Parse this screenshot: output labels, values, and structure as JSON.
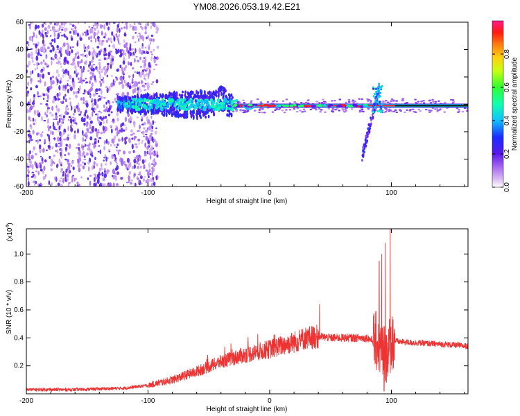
{
  "title": "YM08.2026.053.19.42.E21",
  "chart_data": [
    {
      "type": "heatmap",
      "panel": "spectrogram",
      "xlabel": "Height of straight line (km)",
      "ylabel": "Frequency (Hz)",
      "xlim": [
        -200,
        163
      ],
      "ylim": [
        -60,
        60
      ],
      "xticks": [
        "-200",
        "-100",
        "0",
        "100"
      ],
      "xtick_values": [
        -200,
        -100,
        0,
        100
      ],
      "yticks": [
        "-60",
        "-40",
        "-20",
        "0",
        "20",
        "40",
        "60"
      ],
      "ytick_values": [
        -60,
        -40,
        -20,
        0,
        20,
        40,
        60
      ],
      "noise_region_x": [
        -200,
        -95
      ],
      "features": [
        {
          "name": "broadband scatter",
          "x": [
            -125,
            -30
          ],
          "freq_half_width": 8,
          "amplitude": 0.25
        },
        {
          "name": "steady carrier",
          "x": [
            -30,
            163
          ],
          "freq_center": -1,
          "amplitude": 0.95
        },
        {
          "name": "transient burst",
          "x": [
            75,
            92
          ],
          "freq_range": [
            -38,
            15
          ],
          "amplitude": 0.3
        }
      ],
      "colorbar": {
        "label": "Normalized spectral amplitude",
        "range": [
          0,
          1
        ],
        "ticks": [
          "0.0",
          "0.2",
          "0.4",
          "0.6",
          "0.8"
        ],
        "tick_values": [
          0,
          0.2,
          0.4,
          0.6,
          0.8
        ]
      }
    },
    {
      "type": "line",
      "panel": "snr",
      "color": "#ee3333",
      "xlabel": "Height of straight line (km)",
      "ylabel": "SNR (10 * v/v)",
      "yscale_label": "(x10",
      "yscale_exp": "4",
      "yscale_close": ")",
      "xlim": [
        -200,
        163
      ],
      "ylim": [
        0,
        1.18
      ],
      "xticks": [
        "-200",
        "-100",
        "0",
        "100"
      ],
      "xtick_values": [
        -200,
        -100,
        0,
        100
      ],
      "yticks": [
        "0.2",
        "0.4",
        "0.6",
        "0.8",
        "1.0"
      ],
      "ytick_values": [
        0.2,
        0.4,
        0.6,
        0.8,
        1.0
      ],
      "x": [
        -200,
        -160,
        -120,
        -100,
        -80,
        -60,
        -40,
        -20,
        0,
        20,
        30,
        40,
        50,
        60,
        70,
        80,
        85,
        88,
        90,
        92,
        95,
        98,
        100,
        110,
        130,
        150,
        163
      ],
      "y": [
        0.03,
        0.03,
        0.04,
        0.06,
        0.1,
        0.16,
        0.23,
        0.28,
        0.32,
        0.37,
        0.4,
        0.41,
        0.4,
        0.4,
        0.4,
        0.4,
        0.38,
        0.37,
        0.35,
        0.3,
        0.3,
        0.33,
        0.38,
        0.37,
        0.36,
        0.35,
        0.34
      ],
      "spikes": [
        {
          "x": 41,
          "y": 0.64
        },
        {
          "x": 90,
          "y": 0.95
        },
        {
          "x": 92,
          "y": 1.0
        },
        {
          "x": 95,
          "y": 1.08
        },
        {
          "x": 99,
          "y": 1.18
        }
      ],
      "dips": [
        {
          "x": 94,
          "y": 0.02
        },
        {
          "x": 96,
          "y": 0.08
        }
      ]
    }
  ]
}
